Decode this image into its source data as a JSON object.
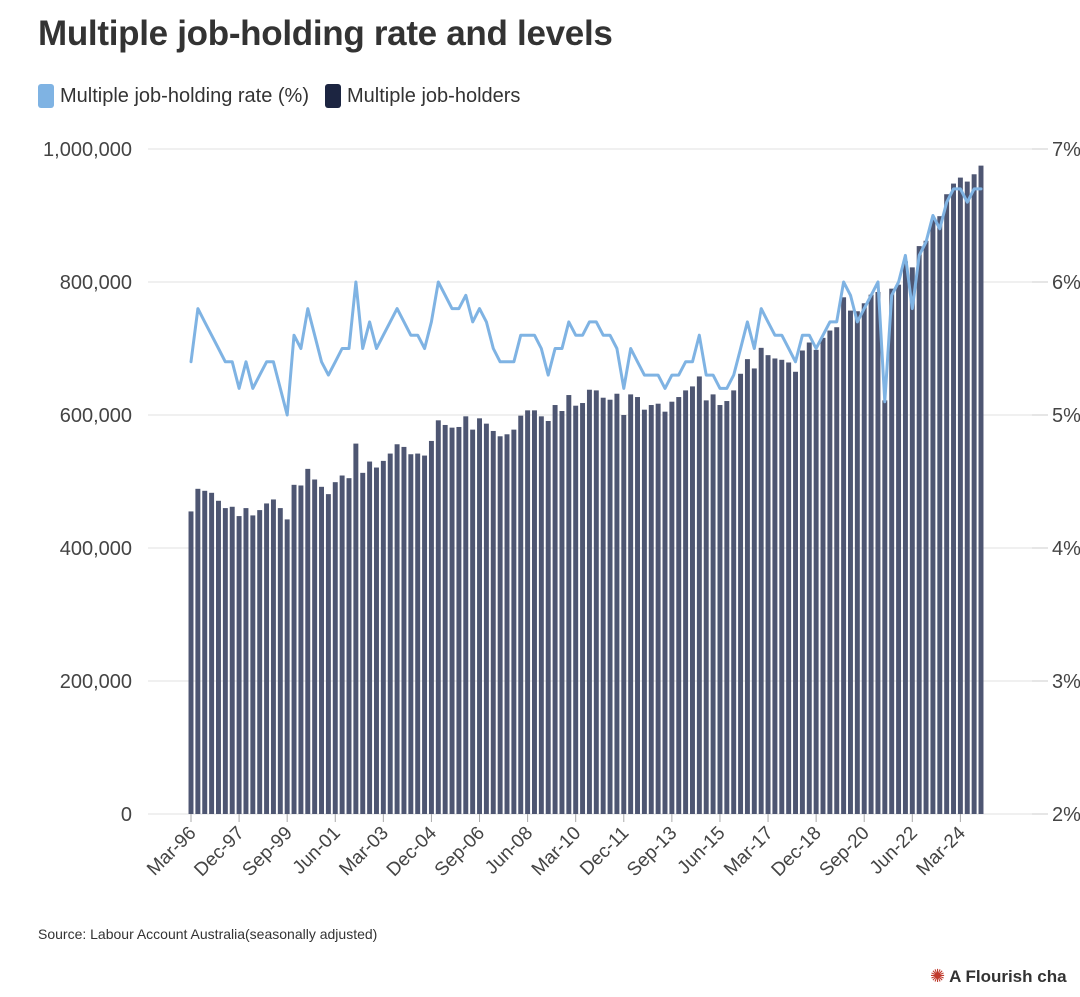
{
  "title": "Multiple job-holding rate and levels",
  "legend": {
    "rate_label": "Multiple job-holding rate (%)",
    "holders_label": "Multiple job-holders"
  },
  "colors": {
    "rate": "#7fb3e3",
    "holders": "#1c2541",
    "bar": "#4e5672",
    "grid": "#e6e6e6"
  },
  "source": "Source: Labour Account Australia(seasonally adjusted)",
  "credit": "A Flourish cha",
  "chart_data": {
    "type": "bar",
    "title": "Multiple job-holding rate and levels",
    "series": [
      {
        "name": "Multiple job-holders",
        "type": "bar",
        "axis": "left",
        "values": [
          455000,
          489000,
          486000,
          483000,
          471000,
          460000,
          462000,
          448000,
          460000,
          449000,
          457000,
          467000,
          473000,
          460000,
          443000,
          495000,
          494000,
          519000,
          503000,
          492000,
          481000,
          499000,
          509000,
          505000,
          557000,
          513000,
          530000,
          521000,
          531000,
          542000,
          556000,
          552000,
          541000,
          542000,
          539000,
          561000,
          592000,
          585000,
          581000,
          582000,
          598000,
          578000,
          595000,
          587000,
          576000,
          568000,
          571000,
          578000,
          599000,
          607000,
          607000,
          598000,
          591000,
          615000,
          606000,
          630000,
          614000,
          618000,
          638000,
          637000,
          626000,
          623000,
          632000,
          600000,
          631000,
          627000,
          608000,
          615000,
          617000,
          605000,
          620000,
          627000,
          637000,
          643000,
          658000,
          622000,
          631000,
          615000,
          621000,
          637000,
          662000,
          684000,
          670000,
          701000,
          690000,
          685000,
          683000,
          679000,
          665000,
          697000,
          709000,
          698000,
          716000,
          727000,
          732000,
          777000,
          757000,
          756000,
          768000,
          781000,
          785000,
          622000,
          790000,
          796000,
          831000,
          822000,
          854000,
          862000,
          894000,
          899000,
          932000,
          948000,
          957000,
          951000,
          962000,
          975000
        ]
      },
      {
        "name": "Multiple job-holding rate (%)",
        "type": "line",
        "axis": "right",
        "values": [
          5.4,
          5.8,
          5.7,
          5.6,
          5.5,
          5.4,
          5.4,
          5.2,
          5.4,
          5.2,
          5.3,
          5.4,
          5.4,
          5.2,
          5.0,
          5.6,
          5.5,
          5.8,
          5.6,
          5.4,
          5.3,
          5.4,
          5.5,
          5.5,
          6.0,
          5.5,
          5.7,
          5.5,
          5.6,
          5.7,
          5.8,
          5.7,
          5.6,
          5.6,
          5.5,
          5.7,
          6.0,
          5.9,
          5.8,
          5.8,
          5.9,
          5.7,
          5.8,
          5.7,
          5.5,
          5.4,
          5.4,
          5.4,
          5.6,
          5.6,
          5.6,
          5.5,
          5.3,
          5.5,
          5.5,
          5.7,
          5.6,
          5.6,
          5.7,
          5.7,
          5.6,
          5.6,
          5.5,
          5.2,
          5.5,
          5.4,
          5.3,
          5.3,
          5.3,
          5.2,
          5.3,
          5.3,
          5.4,
          5.4,
          5.6,
          5.3,
          5.3,
          5.2,
          5.2,
          5.3,
          5.5,
          5.7,
          5.5,
          5.8,
          5.7,
          5.6,
          5.6,
          5.5,
          5.4,
          5.6,
          5.6,
          5.5,
          5.6,
          5.7,
          5.7,
          6.0,
          5.9,
          5.7,
          5.8,
          5.9,
          6.0,
          5.1,
          5.9,
          6.0,
          6.2,
          5.8,
          6.2,
          6.3,
          6.5,
          6.4,
          6.6,
          6.7,
          6.7,
          6.6,
          6.7,
          6.7
        ]
      }
    ],
    "left_axis": {
      "min": 0,
      "max": 1000000,
      "ticks": [
        "0",
        "200,000",
        "400,000",
        "600,000",
        "800,000",
        "1,000,000"
      ],
      "tick_values": [
        0,
        200000,
        400000,
        600000,
        800000,
        1000000
      ]
    },
    "right_axis": {
      "min": 2,
      "max": 7,
      "ticks": [
        "2%",
        "3%",
        "4%",
        "5%",
        "6%",
        "7%"
      ],
      "tick_values": [
        2,
        3,
        4,
        5,
        6,
        7
      ]
    },
    "x_ticks": [
      {
        "label": "Mar-96",
        "index": 0
      },
      {
        "label": "Dec-97",
        "index": 7
      },
      {
        "label": "Sep-99",
        "index": 14
      },
      {
        "label": "Jun-01",
        "index": 21
      },
      {
        "label": "Mar-03",
        "index": 28
      },
      {
        "label": "Dec-04",
        "index": 35
      },
      {
        "label": "Sep-06",
        "index": 42
      },
      {
        "label": "Jun-08",
        "index": 49
      },
      {
        "label": "Mar-10",
        "index": 56
      },
      {
        "label": "Dec-11",
        "index": 63
      },
      {
        "label": "Sep-13",
        "index": 70
      },
      {
        "label": "Jun-15",
        "index": 77
      },
      {
        "label": "Mar-17",
        "index": 84
      },
      {
        "label": "Dec-18",
        "index": 91
      },
      {
        "label": "Sep-20",
        "index": 98
      },
      {
        "label": "Jun-22",
        "index": 105
      },
      {
        "label": "Mar-24",
        "index": 112
      }
    ],
    "grid": true,
    "legend_position": "top-left"
  }
}
